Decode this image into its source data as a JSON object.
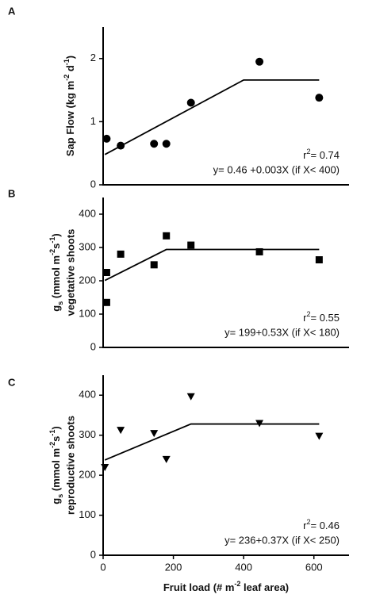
{
  "chart_data": [
    {
      "type": "scatter",
      "panel": "A",
      "marker": "circle",
      "color": "#000000",
      "ylabel": [
        {
          "t": "Sap Flow (kg m"
        },
        {
          "t": "-2",
          "s": "sup"
        },
        {
          "t": " d"
        },
        {
          "t": "-1",
          "s": "sup"
        },
        {
          "t": ")"
        }
      ],
      "r2": [
        {
          "t": "r"
        },
        {
          "t": "2",
          "s": "sup"
        },
        {
          "t": "= 0.74"
        }
      ],
      "equation": "y= 0.46 +0.003X (if X< 400)",
      "xlim": [
        0,
        700
      ],
      "ylim": [
        0,
        2.5
      ],
      "yticks": [
        0,
        1,
        2
      ],
      "points": {
        "x": [
          10,
          50,
          145,
          180,
          250,
          445,
          615
        ],
        "y": [
          0.73,
          0.62,
          0.65,
          0.65,
          1.3,
          1.95,
          1.38
        ]
      },
      "fit": {
        "x": [
          5,
          400,
          615
        ],
        "y": [
          0.48,
          1.66,
          1.66
        ]
      }
    },
    {
      "type": "scatter",
      "panel": "B",
      "marker": "square",
      "color": "#000000",
      "ylabel": [
        {
          "t": "g"
        },
        {
          "t": "s",
          "s": "sub"
        },
        {
          "t": " (mmol m"
        },
        {
          "t": "-2",
          "s": "sup"
        },
        {
          "t": "s"
        },
        {
          "t": "-1",
          "s": "sup"
        },
        {
          "t": ")"
        }
      ],
      "ylabel2": "vegetative shoots",
      "r2": [
        {
          "t": "r"
        },
        {
          "t": "2",
          "s": "sup"
        },
        {
          "t": "= 0.55"
        }
      ],
      "equation": "y= 199+0.53X (if X< 180)",
      "xlim": [
        0,
        700
      ],
      "ylim": [
        0,
        450
      ],
      "yticks": [
        0,
        100,
        200,
        300,
        400
      ],
      "points": {
        "x": [
          10,
          10,
          50,
          145,
          180,
          250,
          445,
          615
        ],
        "y": [
          225,
          135,
          280,
          248,
          335,
          307,
          287,
          263
        ]
      },
      "fit": {
        "x": [
          5,
          180,
          615
        ],
        "y": [
          201,
          294,
          294
        ]
      }
    },
    {
      "type": "scatter",
      "panel": "C",
      "marker": "triangle-down",
      "color": "#000000",
      "ylabel": [
        {
          "t": "g"
        },
        {
          "t": "s",
          "s": "sub"
        },
        {
          "t": " (mmol m"
        },
        {
          "t": "-2",
          "s": "sup"
        },
        {
          "t": "s"
        },
        {
          "t": "-1",
          "s": "sup"
        },
        {
          "t": ")"
        }
      ],
      "ylabel2": "reproductive shoots",
      "r2": [
        {
          "t": "r"
        },
        {
          "t": "2",
          "s": "sup"
        },
        {
          "t": "= 0.46"
        }
      ],
      "equation": "y= 236+0.37X (if  X< 250)",
      "xlabel": [
        {
          "t": "Fruit load (# m"
        },
        {
          "t": "-2",
          "s": "sup"
        },
        {
          "t": " leaf area)"
        }
      ],
      "xlim": [
        0,
        700
      ],
      "ylim": [
        0,
        450
      ],
      "yticks": [
        0,
        100,
        200,
        300,
        400
      ],
      "xticks": [
        0,
        200,
        400,
        600
      ],
      "points": {
        "x": [
          5,
          50,
          145,
          180,
          250,
          445,
          615
        ],
        "y": [
          220,
          313,
          305,
          240,
          397,
          330,
          298
        ]
      },
      "fit": {
        "x": [
          5,
          250,
          615
        ],
        "y": [
          238,
          328,
          328
        ]
      }
    }
  ]
}
